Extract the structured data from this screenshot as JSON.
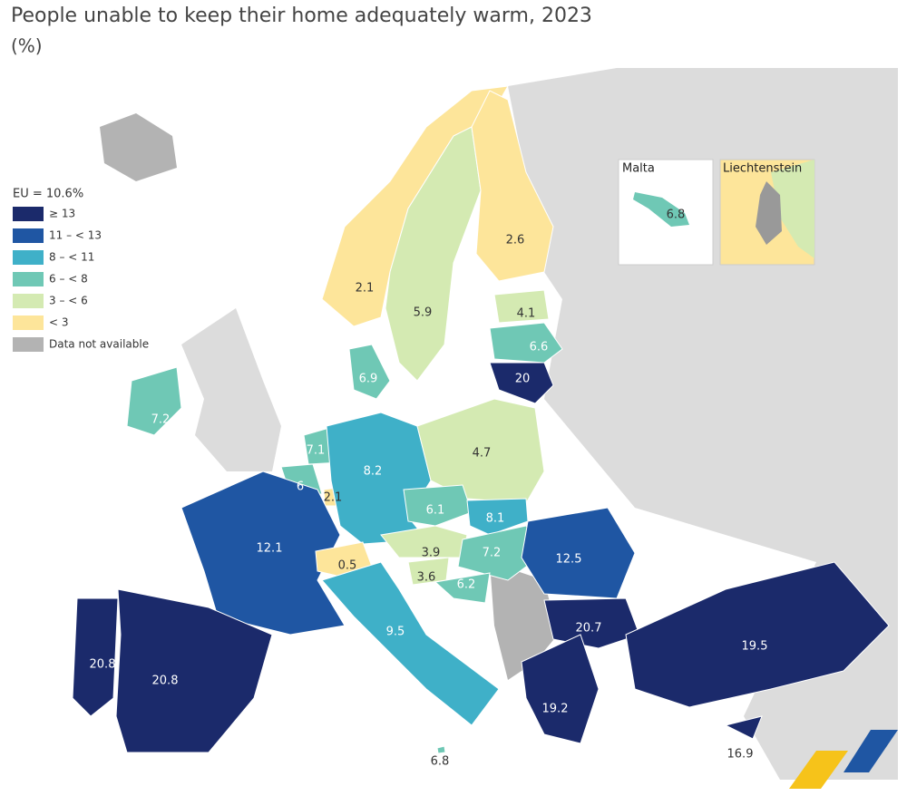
{
  "title": "People unable to keep their home adequately warm, 2023",
  "subtitle": "(%)",
  "legend": {
    "title": "EU = 10.6%",
    "items": [
      {
        "label": "≥ 13",
        "color": "#1b2a6b"
      },
      {
        "label": "11 – < 13",
        "color": "#1f56a3"
      },
      {
        "label": "8 – < 11",
        "color": "#3fb0c8"
      },
      {
        "label": "6 – < 8",
        "color": "#6fc8b5"
      },
      {
        "label": "3 – < 6",
        "color": "#d4eab2"
      },
      {
        "label": "< 3",
        "color": "#fde59a"
      },
      {
        "label": "Data not available",
        "color": "#b3b3b3"
      }
    ]
  },
  "insets": [
    {
      "title": "Malta",
      "value": 6.8,
      "color": "#6fc8b5"
    },
    {
      "title": "Liechtenstein"
    }
  ],
  "regions": [
    {
      "value": 2.1,
      "color": "#fde59a"
    },
    {
      "value": 5.9,
      "color": "#d4eab2"
    },
    {
      "value": 2.6,
      "color": "#fde59a"
    },
    {
      "value": 4.1,
      "color": "#d4eab2"
    },
    {
      "value": 6.6,
      "color": "#6fc8b5"
    },
    {
      "value": 20,
      "color": "#1b2a6b"
    },
    {
      "value": 6.9,
      "color": "#6fc8b5"
    },
    {
      "value": 7.2,
      "color": "#6fc8b5"
    },
    {
      "value": 7.1,
      "color": "#6fc8b5"
    },
    {
      "value": 6,
      "color": "#6fc8b5"
    },
    {
      "value": 2.1,
      "color": "#fde59a"
    },
    {
      "value": 8.2,
      "color": "#3fb0c8"
    },
    {
      "value": 4.7,
      "color": "#d4eab2"
    },
    {
      "value": 6.1,
      "color": "#6fc8b5"
    },
    {
      "value": 8.1,
      "color": "#3fb0c8"
    },
    {
      "value": 3.9,
      "color": "#d4eab2"
    },
    {
      "value": 7.2,
      "color": "#6fc8b5"
    },
    {
      "value": 12.5,
      "color": "#1f56a3"
    },
    {
      "value": 12.1,
      "color": "#1f56a3"
    },
    {
      "value": 0.5,
      "color": "#fde59a"
    },
    {
      "value": 3.6,
      "color": "#d4eab2"
    },
    {
      "value": 6.2,
      "color": "#6fc8b5"
    },
    {
      "value": 20.7,
      "color": "#1b2a6b"
    },
    {
      "value": 19.5,
      "color": "#1b2a6b"
    },
    {
      "value": 9.5,
      "color": "#3fb0c8"
    },
    {
      "value": 20.8,
      "color": "#1b2a6b"
    },
    {
      "value": 20.8,
      "color": "#1b2a6b"
    },
    {
      "value": 19.2,
      "color": "#1b2a6b"
    },
    {
      "value": 6.8,
      "color": "#6fc8b5"
    },
    {
      "value": 16.9,
      "color": "#1b2a6b"
    }
  ]
}
